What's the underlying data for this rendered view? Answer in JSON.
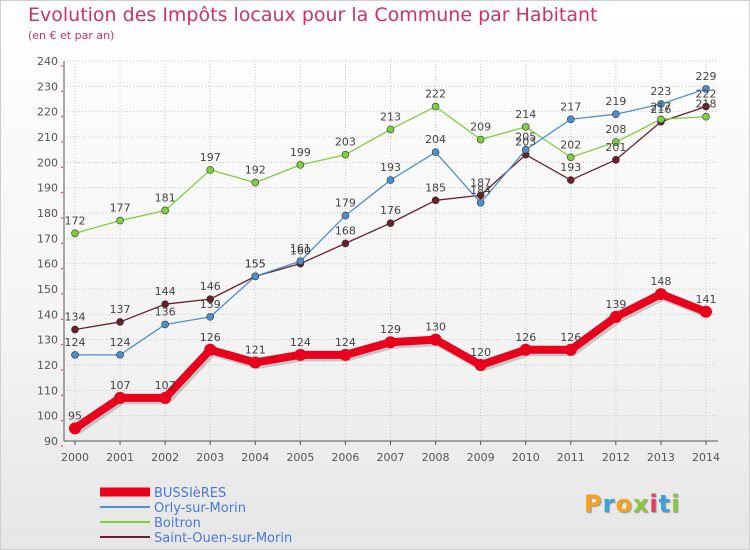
{
  "header": {
    "title": "Evolution des Impôts locaux pour la Commune par Habitant",
    "subtitle": "(en € et par an)"
  },
  "brand": {
    "letters": [
      "P",
      "r",
      "o",
      "x",
      "i",
      "t",
      "i"
    ],
    "colors": [
      "#f2a31b",
      "#3aa0de",
      "#f2a31b",
      "#8cc63f",
      "#e73c5e",
      "#3aa0de",
      "#8cc63f"
    ]
  },
  "colors": {
    "title": "#cc3366",
    "axis": "#555555",
    "grid": "#c8c8c8",
    "accent_ticks": "#cc3366"
  },
  "chart_data": {
    "type": "line",
    "title": "Evolution des Impôts locaux pour la Commune par Habitant",
    "xlabel": "",
    "ylabel": "(en € et par an)",
    "categories": [
      "2000",
      "2001",
      "2002",
      "2003",
      "2004",
      "2005",
      "2006",
      "2007",
      "2008",
      "2009",
      "2010",
      "2011",
      "2012",
      "2013",
      "2014"
    ],
    "ylim": [
      90,
      240
    ],
    "yticks": [
      90,
      100,
      110,
      120,
      130,
      140,
      150,
      160,
      170,
      180,
      190,
      200,
      210,
      220,
      230,
      240
    ],
    "grid": true,
    "legend": "bottom-left",
    "series": [
      {
        "name": "BUSSIèRES",
        "color": "#e8001c",
        "width": "thick",
        "values": [
          95,
          107,
          107,
          126,
          121,
          124,
          124,
          129,
          130,
          120,
          126,
          126,
          139,
          148,
          141
        ]
      },
      {
        "name": "Orly-sur-Morin",
        "color": "#4d8fce",
        "width": "thin",
        "values": [
          124,
          124,
          136,
          139,
          155,
          161,
          179,
          193,
          204,
          184,
          205,
          217,
          219,
          223,
          229
        ]
      },
      {
        "name": "Boitron",
        "color": "#7ecf3d",
        "width": "thin",
        "values": [
          172,
          177,
          181,
          197,
          192,
          199,
          203,
          213,
          222,
          209,
          214,
          202,
          208,
          217,
          218
        ]
      },
      {
        "name": "Saint-Ouen-sur-Morin",
        "color": "#6b1f2a",
        "width": "thin",
        "values": [
          134,
          137,
          144,
          146,
          155,
          160,
          168,
          176,
          185,
          187,
          203,
          193,
          201,
          216,
          222
        ]
      }
    ],
    "point_labels": [
      [
        "95",
        "107",
        "107",
        "126",
        "121",
        "124",
        "124",
        "129",
        "130",
        "120",
        "126",
        "126",
        "139",
        "148",
        "141"
      ],
      [
        "124",
        "124",
        "136",
        "139",
        "155",
        "161",
        "179",
        "193",
        "204",
        "184",
        "205",
        "217",
        "219",
        "223",
        "229"
      ],
      [
        "172",
        "177",
        "181",
        "197",
        "192",
        "199",
        "203",
        "213",
        "222",
        "209",
        "214",
        "202",
        "208",
        "217",
        "218"
      ],
      [
        "134",
        "137",
        "144",
        "146",
        "155",
        "160",
        "168",
        "176",
        "185",
        "187",
        "203",
        "193",
        "201",
        "216",
        "222"
      ]
    ]
  }
}
